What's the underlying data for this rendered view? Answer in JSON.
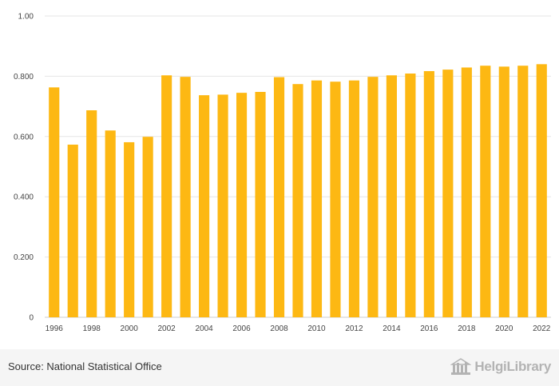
{
  "chart_data": {
    "type": "bar",
    "title": "",
    "xlabel": "",
    "ylabel": "",
    "color": "#FDB813",
    "grid": true,
    "ylim": [
      0,
      1.0
    ],
    "yticks": [
      "0",
      "0.200",
      "0.400",
      "0.600",
      "0.800",
      "1.00"
    ],
    "categories": [
      "1996",
      "1997",
      "1998",
      "1999",
      "2000",
      "2001",
      "2002",
      "2003",
      "2004",
      "2005",
      "2006",
      "2007",
      "2008",
      "2009",
      "2010",
      "2011",
      "2012",
      "2013",
      "2014",
      "2015",
      "2016",
      "2017",
      "2018",
      "2019",
      "2020",
      "2021",
      "2022"
    ],
    "xtick_labels": [
      "1996",
      "1998",
      "2000",
      "2002",
      "2004",
      "2006",
      "2008",
      "2010",
      "2012",
      "2014",
      "2016",
      "2018",
      "2020",
      "2022"
    ],
    "values": [
      0.763,
      0.573,
      0.687,
      0.62,
      0.581,
      0.599,
      0.803,
      0.798,
      0.737,
      0.739,
      0.745,
      0.748,
      0.797,
      0.774,
      0.786,
      0.782,
      0.786,
      0.798,
      0.803,
      0.809,
      0.817,
      0.822,
      0.829,
      0.835,
      0.832,
      0.835,
      0.84
    ]
  },
  "footer": {
    "source": "Source: National Statistical Office",
    "brand": "HelgiLibrary",
    "brand_icon": "library-building-icon"
  }
}
